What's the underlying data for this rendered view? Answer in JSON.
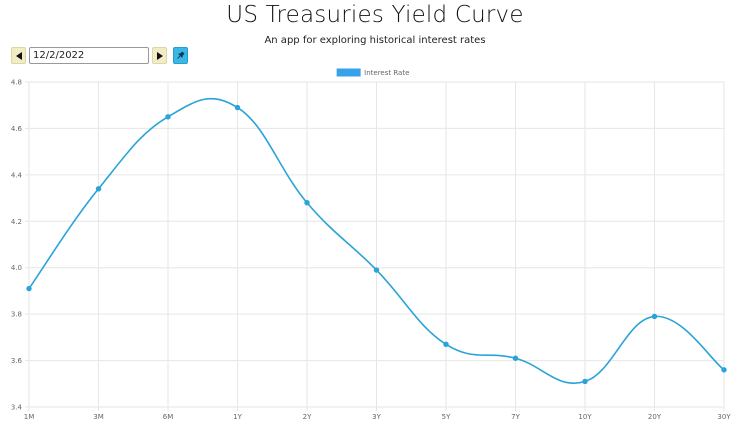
{
  "header": {
    "title": "US Treasuries Yield Curve",
    "subtitle": "An app for exploring historical interest rates"
  },
  "controls": {
    "date_value": "12/2/2022",
    "prev_icon": "triangle-left-icon",
    "next_icon": "triangle-right-icon",
    "pin_icon": "pin-icon"
  },
  "colors": {
    "line": "#2aa3d8",
    "legend_box": "#36a2eb",
    "grid": "#e6e6e6",
    "nav_button": "#f1ecc6",
    "pin_button": "#39b8e8"
  },
  "chart_data": {
    "type": "line",
    "categories": [
      "1M",
      "3M",
      "6M",
      "1Y",
      "2Y",
      "3Y",
      "5Y",
      "7Y",
      "10Y",
      "20Y",
      "30Y"
    ],
    "series": [
      {
        "name": "Interest Rate",
        "values": [
          3.91,
          4.34,
          4.65,
          4.69,
          4.28,
          3.99,
          3.67,
          3.61,
          3.51,
          3.79,
          3.56
        ]
      }
    ],
    "y_ticks": [
      "3.4",
      "3.6",
      "3.8",
      "4.0",
      "4.2",
      "4.4",
      "4.6",
      "4.8"
    ],
    "ylim": [
      3.4,
      4.8
    ],
    "grid": true,
    "legend": "top-center",
    "smooth": true
  }
}
